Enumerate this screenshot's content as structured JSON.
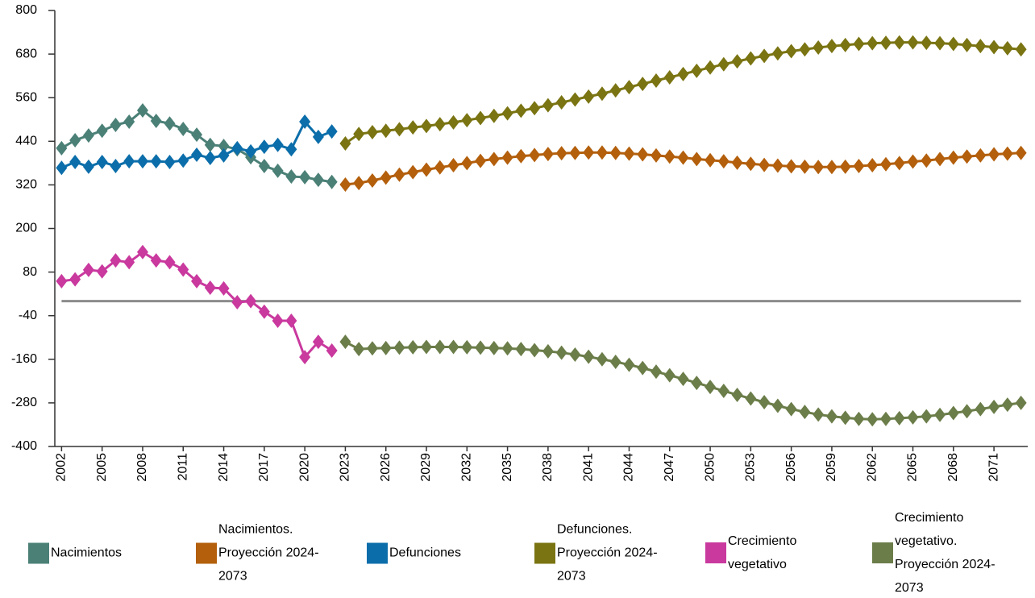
{
  "chart_data": {
    "type": "line",
    "x": [
      2002,
      2003,
      2004,
      2005,
      2006,
      2007,
      2008,
      2009,
      2010,
      2011,
      2012,
      2013,
      2014,
      2015,
      2016,
      2017,
      2018,
      2019,
      2020,
      2021,
      2022,
      2023,
      2024,
      2025,
      2026,
      2027,
      2028,
      2029,
      2030,
      2031,
      2032,
      2033,
      2034,
      2035,
      2036,
      2037,
      2038,
      2039,
      2040,
      2041,
      2042,
      2043,
      2044,
      2045,
      2046,
      2047,
      2048,
      2049,
      2050,
      2051,
      2052,
      2053,
      2054,
      2055,
      2056,
      2057,
      2058,
      2059,
      2060,
      2061,
      2062,
      2063,
      2064,
      2065,
      2066,
      2067,
      2068,
      2069,
      2070,
      2071,
      2072,
      2073
    ],
    "xlim": [
      2001.5,
      2073.5
    ],
    "xticks": [
      2002,
      2005,
      2008,
      2011,
      2014,
      2017,
      2020,
      2023,
      2026,
      2029,
      2032,
      2035,
      2038,
      2041,
      2044,
      2047,
      2050,
      2053,
      2056,
      2059,
      2062,
      2065,
      2068,
      2071
    ],
    "ylim": [
      -400,
      800
    ],
    "yticks": [
      -400,
      -280,
      -160,
      -40,
      80,
      200,
      320,
      440,
      560,
      680,
      800
    ],
    "series": [
      {
        "name": "Nacimientos",
        "color": "#4b8077",
        "values": [
          421,
          443,
          456,
          469,
          485,
          494,
          525,
          496,
          489,
          474,
          458,
          430,
          427,
          418,
          396,
          372,
          359,
          343,
          341,
          334,
          328,
          null,
          null,
          null,
          null,
          null,
          null,
          null,
          null,
          null,
          null,
          null,
          null,
          null,
          null,
          null,
          null,
          null,
          null,
          null,
          null,
          null,
          null,
          null,
          null,
          null,
          null,
          null,
          null,
          null,
          null,
          null,
          null,
          null,
          null,
          null,
          null,
          null,
          null,
          null,
          null,
          null,
          null,
          null,
          null,
          null,
          null,
          null,
          null,
          null,
          null,
          null
        ]
      },
      {
        "name": "Nacimientos. Proyección 2024-2073",
        "color": "#b35f0c",
        "values": [
          null,
          null,
          null,
          null,
          null,
          null,
          null,
          null,
          null,
          null,
          null,
          null,
          null,
          null,
          null,
          null,
          null,
          null,
          null,
          null,
          null,
          321,
          325,
          332,
          340,
          348,
          355,
          362,
          368,
          374,
          380,
          386,
          391,
          395,
          399,
          402,
          405,
          407,
          408,
          409,
          409,
          408,
          406,
          404,
          401,
          398,
          395,
          391,
          388,
          385,
          381,
          378,
          375,
          373,
          371,
          370,
          369,
          369,
          370,
          372,
          374,
          377,
          380,
          384,
          387,
          391,
          395,
          398,
          401,
          404,
          406,
          408
        ]
      },
      {
        "name": "Defunciones",
        "color": "#0b6eaa",
        "values": [
          367,
          383,
          370,
          383,
          372,
          385,
          385,
          385,
          383,
          387,
          403,
          394,
          401,
          421,
          412,
          425,
          430,
          418,
          494,
          452,
          467,
          null,
          null,
          null,
          null,
          null,
          null,
          null,
          null,
          null,
          null,
          null,
          null,
          null,
          null,
          null,
          null,
          null,
          null,
          null,
          null,
          null,
          null,
          null,
          null,
          null,
          null,
          null,
          null,
          null,
          null,
          null,
          null,
          null,
          null,
          null,
          null,
          null,
          null,
          null,
          null,
          null,
          null,
          null,
          null,
          null,
          null,
          null,
          null,
          null,
          null,
          null
        ]
      },
      {
        "name": "Defunciones. Proyección 2024-2073",
        "color": "#7a7412",
        "values": [
          null,
          null,
          null,
          null,
          null,
          null,
          null,
          null,
          null,
          null,
          null,
          null,
          null,
          null,
          null,
          null,
          null,
          null,
          null,
          null,
          null,
          434,
          460,
          465,
          469,
          473,
          478,
          482,
          487,
          492,
          498,
          504,
          510,
          517,
          524,
          531,
          539,
          547,
          555,
          563,
          571,
          580,
          589,
          598,
          607,
          616,
          625,
          634,
          643,
          652,
          660,
          668,
          675,
          682,
          688,
          693,
          698,
          702,
          705,
          708,
          710,
          711,
          712,
          712,
          711,
          710,
          708,
          705,
          702,
          699,
          696,
          693
        ]
      },
      {
        "name": "Crecimiento vegetativo",
        "color": "#c9399e",
        "values": [
          55,
          60,
          86,
          82,
          112,
          107,
          135,
          112,
          107,
          87,
          55,
          37,
          35,
          -3,
          0,
          -29,
          -54,
          -54,
          -154,
          -112,
          -136,
          null,
          null,
          null,
          null,
          null,
          null,
          null,
          null,
          null,
          null,
          null,
          null,
          null,
          null,
          null,
          null,
          null,
          null,
          null,
          null,
          null,
          null,
          null,
          null,
          null,
          null,
          null,
          null,
          null,
          null,
          null,
          null,
          null,
          null,
          null,
          null,
          null,
          null,
          null,
          null,
          null,
          null,
          null,
          null,
          null,
          null,
          null,
          null,
          null,
          null,
          null
        ]
      },
      {
        "name": "Crecimiento vegetativo. Proyección 2024-2073",
        "color": "#6b7d49",
        "values": [
          null,
          null,
          null,
          null,
          null,
          null,
          null,
          null,
          null,
          null,
          null,
          null,
          null,
          null,
          null,
          null,
          null,
          null,
          null,
          null,
          null,
          -112,
          -132,
          -130,
          -129,
          -128,
          -127,
          -126,
          -126,
          -126,
          -127,
          -128,
          -129,
          -130,
          -132,
          -135,
          -138,
          -142,
          -147,
          -153,
          -160,
          -167,
          -175,
          -184,
          -194,
          -204,
          -214,
          -225,
          -236,
          -247,
          -258,
          -268,
          -278,
          -288,
          -297,
          -305,
          -312,
          -317,
          -321,
          -324,
          -325,
          -324,
          -322,
          -320,
          -317,
          -313,
          -308,
          -303,
          -297,
          -291,
          -285,
          -280
        ]
      }
    ]
  }
}
